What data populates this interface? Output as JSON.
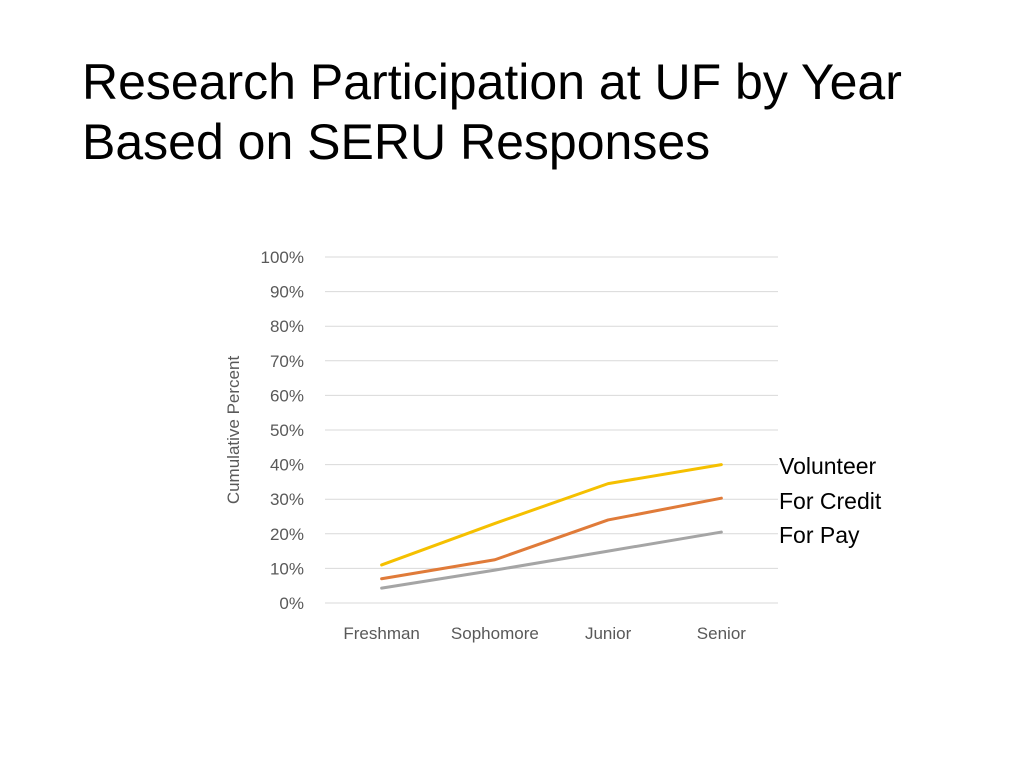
{
  "slide": {
    "title_line1": "Research Participation at UF by Year",
    "title_line2": "Based on SERU Responses"
  },
  "chart_data": {
    "type": "line",
    "title": "",
    "xlabel": "",
    "ylabel": "Cumulative Percent",
    "categories": [
      "Freshman",
      "Sophomore",
      "Junior",
      "Senior"
    ],
    "ylim": [
      0,
      100
    ],
    "yticks": [
      0,
      10,
      20,
      30,
      40,
      50,
      60,
      70,
      80,
      90,
      100
    ],
    "ytick_format": "percent",
    "grid": true,
    "legend": "end-of-line labels, right",
    "series": [
      {
        "name": "Volunteer",
        "color": "#F5C000",
        "values": [
          11,
          23,
          34.5,
          40
        ]
      },
      {
        "name": "For Credit",
        "color": "#E07B39",
        "values": [
          7,
          12.5,
          24,
          30.3
        ]
      },
      {
        "name": "For Pay",
        "color": "#A5A5A5",
        "values": [
          4.3,
          9.5,
          15,
          20.5
        ]
      }
    ]
  }
}
